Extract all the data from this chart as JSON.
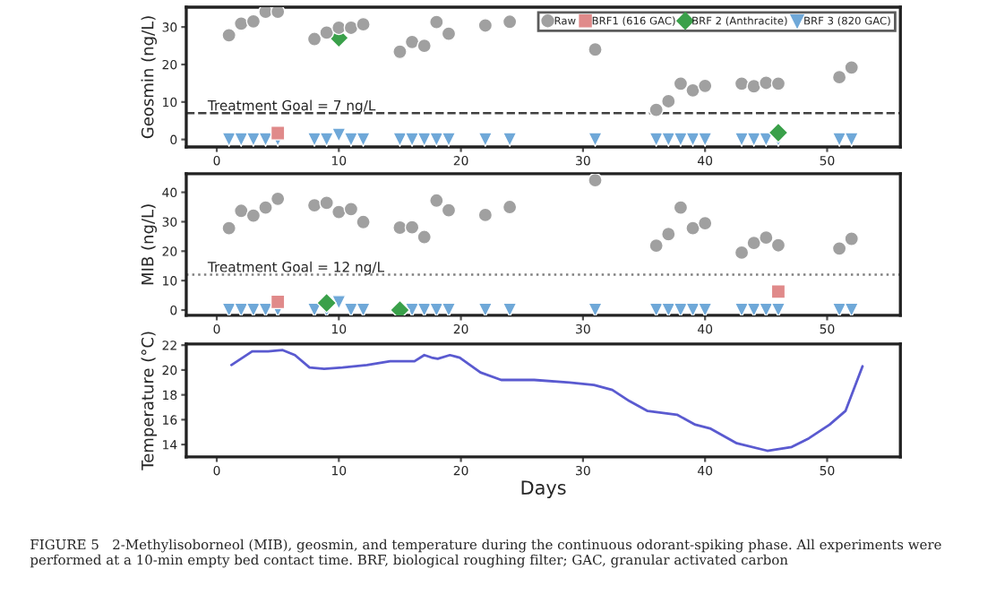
{
  "chart_data": [
    {
      "type": "scatter",
      "ylabel": "Geosmin (ng/L)",
      "xlim": [
        -2.5,
        56
      ],
      "xticks": [
        0,
        10,
        20,
        30,
        40,
        50
      ],
      "ylim": [
        -2,
        35.3
      ],
      "yticks": [
        0,
        10,
        20,
        30
      ],
      "legend": "top right",
      "grid": false,
      "series": [
        {
          "name": "Raw",
          "color": "#a0a0a0",
          "marker": "circle",
          "x": [
            1,
            2,
            3,
            4,
            5,
            8,
            9,
            10,
            11,
            12,
            15,
            16,
            17,
            18,
            19,
            22,
            24,
            31,
            36,
            37,
            38,
            39,
            40,
            43,
            44,
            45,
            46,
            51,
            52
          ],
          "values": [
            27.8,
            30.9,
            31.5,
            34.1,
            34.1,
            26.8,
            28.5,
            29.8,
            29.8,
            30.7,
            23.4,
            26,
            25,
            31.3,
            28.2,
            30.4,
            31.4,
            24,
            7.9,
            10.2,
            14.9,
            13.1,
            14.3,
            14.9,
            14.2,
            15.1,
            14.9,
            16.6,
            19.2
          ]
        },
        {
          "name": "BRF1 (616 GAC)",
          "color": "#e08a8a",
          "marker": "square",
          "x": [
            5
          ],
          "values": [
            1.7
          ]
        },
        {
          "name": "BRF 2 (Anthracite)",
          "color": "#3aa04a",
          "marker": "diamond",
          "x": [
            10,
            46
          ],
          "values": [
            27.1,
            1.8
          ]
        },
        {
          "name": "BRF 3 (820 GAC)",
          "color": "#6fa8d8",
          "marker": "triangle",
          "x": [
            1,
            2,
            3,
            4,
            5,
            8,
            9,
            10,
            11,
            12,
            15,
            16,
            17,
            18,
            19,
            22,
            24,
            31,
            36,
            37,
            38,
            39,
            40,
            43,
            44,
            45,
            46,
            51,
            52
          ],
          "values": [
            0,
            0,
            0,
            0,
            0,
            0,
            0,
            1.2,
            0,
            0,
            0,
            0,
            0,
            0,
            0,
            0,
            0,
            0,
            0,
            0,
            0,
            0,
            0,
            0,
            0,
            0,
            0,
            0,
            0
          ]
        }
      ],
      "ref_lines": [
        {
          "axis": "y",
          "value": 7,
          "label": "Treatment Goal = 7 ng/L",
          "color": "#404040",
          "line_style": "dashed"
        }
      ]
    },
    {
      "type": "scatter",
      "ylabel": "MIB (ng/L)",
      "xlim": [
        -2.5,
        56
      ],
      "xticks": [
        0,
        10,
        20,
        30,
        40,
        50
      ],
      "ylim": [
        -1.8,
        46.3
      ],
      "yticks": [
        0,
        10,
        20,
        30,
        40
      ],
      "grid": false,
      "series": [
        {
          "color": "#a0a0a0",
          "marker": "circle",
          "x": [
            1,
            2,
            3,
            4,
            5,
            8,
            9,
            10,
            11,
            12,
            15,
            16,
            17,
            18,
            19,
            22,
            24,
            31,
            36,
            37,
            38,
            39,
            40,
            43,
            44,
            45,
            46,
            51,
            52
          ],
          "values": [
            27.8,
            33.7,
            32.1,
            34.8,
            37.8,
            35.6,
            36.4,
            33.3,
            34.3,
            29.9,
            28,
            28.1,
            24.8,
            37.2,
            33.9,
            32.3,
            35,
            44.1,
            21.9,
            25.8,
            34.8,
            27.8,
            29.5,
            19.5,
            22.8,
            24.6,
            22,
            20.9,
            24.2
          ]
        },
        {
          "color": "#e08a8a",
          "marker": "square",
          "x": [
            5,
            46
          ],
          "values": [
            2.8,
            6.3
          ]
        },
        {
          "color": "#3aa04a",
          "marker": "diamond",
          "x": [
            9,
            15
          ],
          "values": [
            2.4,
            0
          ]
        },
        {
          "color": "#6fa8d8",
          "marker": "triangle",
          "x": [
            1,
            2,
            3,
            4,
            5,
            8,
            9,
            10,
            11,
            12,
            15,
            16,
            17,
            18,
            19,
            22,
            24,
            31,
            36,
            37,
            38,
            39,
            40,
            43,
            44,
            45,
            46,
            51,
            52
          ],
          "values": [
            0,
            0,
            0,
            0,
            0,
            0,
            0,
            2.6,
            0,
            0,
            null,
            0,
            0,
            0,
            0,
            0,
            0,
            0,
            0,
            0,
            0,
            0,
            0,
            0,
            0,
            0,
            0,
            0,
            0
          ]
        }
      ],
      "ref_lines": [
        {
          "axis": "y",
          "value": 12,
          "label": "Treatment Goal = 12 ng/L",
          "color": "#808080",
          "line_style": "dotted"
        }
      ]
    },
    {
      "type": "line",
      "xlabel": "Days",
      "ylabel": "Temperature (°C)",
      "xlim": [
        -2.5,
        56
      ],
      "xticks": [
        0,
        10,
        20,
        30,
        40,
        50
      ],
      "ylim": [
        13,
        22.1
      ],
      "yticks": [
        14,
        16,
        18,
        20,
        22
      ],
      "grid": false,
      "marker": "none",
      "series": [
        {
          "color": "#5a5ad0",
          "x": [
            1.2,
            2.9,
            4.2,
            5.4,
            6.4,
            7.6,
            8.8,
            10.3,
            12.3,
            14.2,
            16.2,
            17,
            17.6,
            18.1,
            19.1,
            19.9,
            21.6,
            23.3,
            26,
            28.9,
            30.9,
            32.4,
            33.8,
            35.3,
            37.7,
            39.2,
            40.4,
            42.6,
            45.1,
            47.1,
            48.5,
            50.2,
            51.5,
            52.9
          ],
          "values": [
            20.4,
            21.5,
            21.5,
            21.6,
            21.2,
            20.2,
            20.1,
            20.2,
            20.4,
            20.7,
            20.7,
            21.2,
            21.0,
            20.9,
            21.2,
            21.0,
            19.8,
            19.2,
            19.2,
            19.0,
            18.8,
            18.4,
            17.5,
            16.7,
            16.4,
            15.6,
            15.3,
            14.1,
            13.5,
            13.8,
            14.5,
            15.6,
            16.7,
            20.3
          ]
        }
      ],
      "annotations": [
        "FIGURE 5   2-Methylisoborneol (MIB), geosmin, and temperature during the continuous odorant-spiking phase. All experiments were performed at a 10-min empty bed contact time. BRF, biological roughing filter; GAC, granular activated carbon"
      ]
    }
  ]
}
